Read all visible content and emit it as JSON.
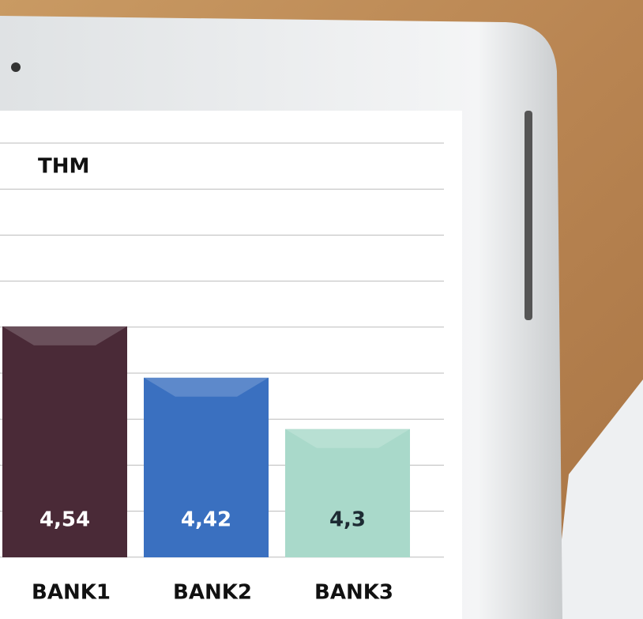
{
  "chart_data": {
    "type": "bar",
    "title": "THM",
    "categories": [
      "BANK1",
      "BANK2",
      "BANK3"
    ],
    "values": [
      4.54,
      4.42,
      4.3
    ],
    "value_labels": [
      "4,54",
      "4,42",
      "4,3"
    ],
    "colors": [
      "#4a2a37",
      "#3a70c0",
      "#a9d9ca"
    ],
    "ylim": [
      4.0,
      5.0
    ]
  }
}
